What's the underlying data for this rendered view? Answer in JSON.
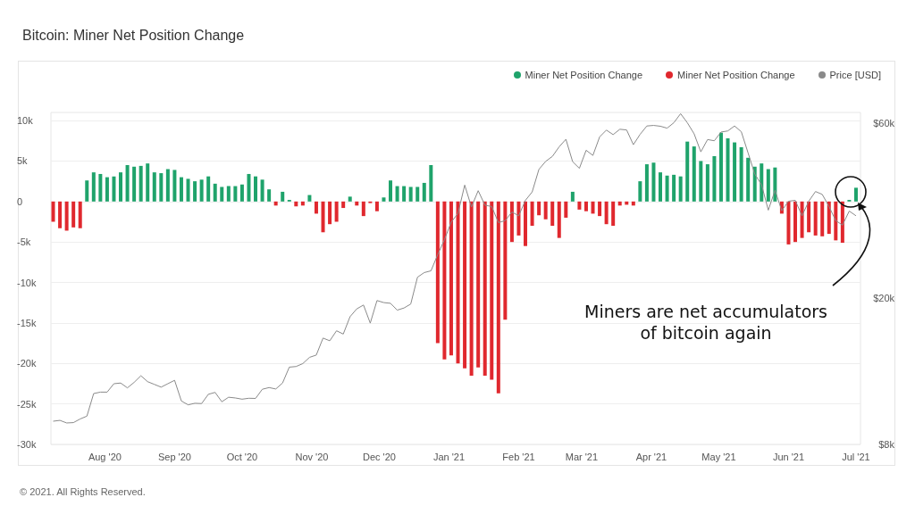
{
  "chart_data": {
    "type": "bar",
    "title": "Bitcoin: Miner Net Position Change",
    "x": [
      "2020-07-09",
      "2020-07-12",
      "2020-07-15",
      "2020-07-18",
      "2020-07-21",
      "2020-07-24",
      "2020-07-27",
      "2020-07-30",
      "2020-08-02",
      "2020-08-05",
      "2020-08-08",
      "2020-08-11",
      "2020-08-14",
      "2020-08-17",
      "2020-08-20",
      "2020-08-23",
      "2020-08-26",
      "2020-08-29",
      "2020-09-01",
      "2020-09-04",
      "2020-09-07",
      "2020-09-10",
      "2020-09-13",
      "2020-09-16",
      "2020-09-19",
      "2020-09-22",
      "2020-09-25",
      "2020-09-28",
      "2020-10-01",
      "2020-10-04",
      "2020-10-07",
      "2020-10-10",
      "2020-10-13",
      "2020-10-16",
      "2020-10-19",
      "2020-10-22",
      "2020-10-25",
      "2020-10-28",
      "2020-10-31",
      "2020-11-03",
      "2020-11-06",
      "2020-11-09",
      "2020-11-12",
      "2020-11-15",
      "2020-11-18",
      "2020-11-21",
      "2020-11-24",
      "2020-11-27",
      "2020-11-30",
      "2020-12-03",
      "2020-12-06",
      "2020-12-09",
      "2020-12-12",
      "2020-12-15",
      "2020-12-18",
      "2020-12-21",
      "2020-12-24",
      "2020-12-27",
      "2020-12-30",
      "2021-01-02",
      "2021-01-05",
      "2021-01-08",
      "2021-01-11",
      "2021-01-14",
      "2021-01-17",
      "2021-01-20",
      "2021-01-23",
      "2021-01-26",
      "2021-01-29",
      "2021-02-01",
      "2021-02-04",
      "2021-02-07",
      "2021-02-10",
      "2021-02-13",
      "2021-02-16",
      "2021-02-19",
      "2021-02-22",
      "2021-02-25",
      "2021-02-28",
      "2021-03-03",
      "2021-03-06",
      "2021-03-09",
      "2021-03-12",
      "2021-03-15",
      "2021-03-18",
      "2021-03-21",
      "2021-03-24",
      "2021-03-27",
      "2021-03-30",
      "2021-04-02",
      "2021-04-05",
      "2021-04-08",
      "2021-04-11",
      "2021-04-14",
      "2021-04-17",
      "2021-04-20",
      "2021-04-23",
      "2021-04-26",
      "2021-04-29",
      "2021-05-02",
      "2021-05-05",
      "2021-05-08",
      "2021-05-11",
      "2021-05-14",
      "2021-05-17",
      "2021-05-20",
      "2021-05-23",
      "2021-05-26",
      "2021-05-29",
      "2021-06-01",
      "2021-06-04",
      "2021-06-07",
      "2021-06-10",
      "2021-06-13",
      "2021-06-16",
      "2021-06-19",
      "2021-06-22",
      "2021-06-25",
      "2021-06-28",
      "2021-07-01"
    ],
    "series": [
      {
        "name": "Miner Net Position Change",
        "color": "#1fa36b",
        "values": [
          null,
          null,
          null,
          null,
          null,
          2600,
          3600,
          3400,
          3000,
          3100,
          3600,
          4500,
          4300,
          4400,
          4700,
          3600,
          3500,
          4000,
          3900,
          3000,
          2800,
          2500,
          2700,
          3100,
          2200,
          1800,
          1900,
          1900,
          2100,
          3400,
          3100,
          2700,
          1500,
          null,
          1200,
          200,
          null,
          null,
          800,
          null,
          null,
          null,
          null,
          null,
          600,
          null,
          null,
          null,
          null,
          500,
          2600,
          1900,
          1900,
          1800,
          1800,
          2300,
          4500,
          null,
          null,
          null,
          null,
          null,
          null,
          null,
          null,
          null,
          null,
          null,
          null,
          null,
          null,
          null,
          null,
          null,
          null,
          null,
          null,
          1200,
          null,
          null,
          null,
          null,
          null,
          null,
          null,
          null,
          null,
          2500,
          4600,
          4800,
          3600,
          3200,
          3300,
          3100,
          7400,
          6800,
          5000,
          4600,
          5600,
          8500,
          7800,
          7300,
          6700,
          5400,
          4300,
          4700,
          4000,
          4200,
          null,
          null,
          null,
          null,
          null,
          null,
          null,
          null,
          null,
          null,
          200,
          1700
        ]
      },
      {
        "name": "Miner Net Position Change",
        "color": "#e0282e",
        "values": [
          -2500,
          -3300,
          -3600,
          -3200,
          -3300,
          null,
          null,
          null,
          null,
          null,
          null,
          null,
          null,
          null,
          null,
          null,
          null,
          null,
          null,
          null,
          null,
          null,
          null,
          null,
          null,
          null,
          null,
          null,
          null,
          null,
          null,
          null,
          null,
          -500,
          null,
          null,
          -600,
          -500,
          null,
          -1500,
          -3800,
          -2800,
          -2500,
          -800,
          null,
          -500,
          -1800,
          -200,
          -1200,
          null,
          null,
          null,
          null,
          null,
          null,
          null,
          null,
          -17500,
          -19500,
          -19000,
          -20000,
          -20600,
          -21500,
          -20500,
          -21500,
          -22000,
          -23700,
          -14600,
          -5000,
          -4200,
          -5500,
          -3000,
          -1700,
          -2200,
          -3000,
          -4500,
          -2000,
          null,
          -1000,
          -1200,
          -1500,
          -1800,
          -2800,
          -3000,
          -500,
          -400,
          -500,
          null,
          null,
          null,
          null,
          null,
          null,
          null,
          null,
          null,
          null,
          null,
          null,
          null,
          null,
          null,
          null,
          null,
          null,
          null,
          null,
          null,
          -1500,
          -5300,
          -5000,
          -4500,
          -3800,
          -4200,
          -4300,
          -4000,
          -4800,
          -5100,
          null,
          null
        ]
      },
      {
        "name": "Price [USD]",
        "type": "line",
        "axis": "y2",
        "color": "#8a8a8a",
        "values": [
          9250,
          9300,
          9150,
          9170,
          9380,
          9550,
          11000,
          11100,
          11100,
          11700,
          11750,
          11400,
          11800,
          12300,
          11850,
          11650,
          11450,
          11700,
          11950,
          10500,
          10250,
          10350,
          10330,
          10950,
          11080,
          10450,
          10750,
          10700,
          10620,
          10680,
          10670,
          11300,
          11420,
          11320,
          11750,
          12980,
          13030,
          13270,
          13800,
          14000,
          15570,
          15310,
          16300,
          15970,
          17800,
          18700,
          19150,
          17100,
          19700,
          19450,
          19360,
          18550,
          18800,
          19270,
          22800,
          23470,
          23730,
          26270,
          28850,
          32200,
          33990,
          40600,
          35400,
          39200,
          35800,
          35500,
          32100,
          32500,
          34300,
          33500,
          36900,
          38900,
          44800,
          47100,
          48600,
          51600,
          54100,
          47000,
          45100,
          50500,
          48900,
          54900,
          57300,
          55700,
          57600,
          57350,
          52300,
          55800,
          58800,
          59000,
          58700,
          58000,
          60000,
          63500,
          60000,
          56000,
          50000,
          54000,
          53600,
          56600,
          57000,
          58800,
          56700,
          49700,
          43500,
          40700,
          34700,
          39300,
          34600,
          36700,
          36900,
          33500,
          36700,
          39000,
          38300,
          35500,
          32500,
          31600,
          34500,
          33500
        ]
      }
    ],
    "xlim": [
      "2020-07-08",
      "2021-07-03"
    ],
    "xticks": [
      {
        "value": "2020-08-01",
        "label": "Aug '20"
      },
      {
        "value": "2020-09-01",
        "label": "Sep '20"
      },
      {
        "value": "2020-10-01",
        "label": "Oct '20"
      },
      {
        "value": "2020-11-01",
        "label": "Nov '20"
      },
      {
        "value": "2020-12-01",
        "label": "Dec '20"
      },
      {
        "value": "2021-01-01",
        "label": "Jan '21"
      },
      {
        "value": "2021-02-01",
        "label": "Feb '21"
      },
      {
        "value": "2021-03-01",
        "label": "Mar '21"
      },
      {
        "value": "2021-04-01",
        "label": "Apr '21"
      },
      {
        "value": "2021-05-01",
        "label": "May '21"
      },
      {
        "value": "2021-06-01",
        "label": "Jun '21"
      },
      {
        "value": "2021-07-01",
        "label": "Jul '21"
      }
    ],
    "ylim": [
      -30000,
      11000
    ],
    "yticks": [
      {
        "value": -30000,
        "label": "-30k"
      },
      {
        "value": -25000,
        "label": "-25k"
      },
      {
        "value": -20000,
        "label": "-20k"
      },
      {
        "value": -15000,
        "label": "-15k"
      },
      {
        "value": -10000,
        "label": "-10k"
      },
      {
        "value": -5000,
        "label": "-5k"
      },
      0,
      {
        "value": 5000,
        "label": "5k"
      },
      {
        "value": 10000,
        "label": "10k"
      }
    ],
    "y2lim": [
      8000,
      64000
    ],
    "y2ticks": [
      {
        "value": 8000,
        "label": "$8k"
      },
      {
        "value": 20000,
        "label": "$20k"
      },
      {
        "value": 60000,
        "label": "$60k"
      }
    ],
    "log": "y2",
    "grid": "y",
    "legend": "top right",
    "marker": "none",
    "annotations": [
      "Miners are net accumulators\nof bitcoin again",
      "© 2021. All Rights Reserved."
    ]
  }
}
